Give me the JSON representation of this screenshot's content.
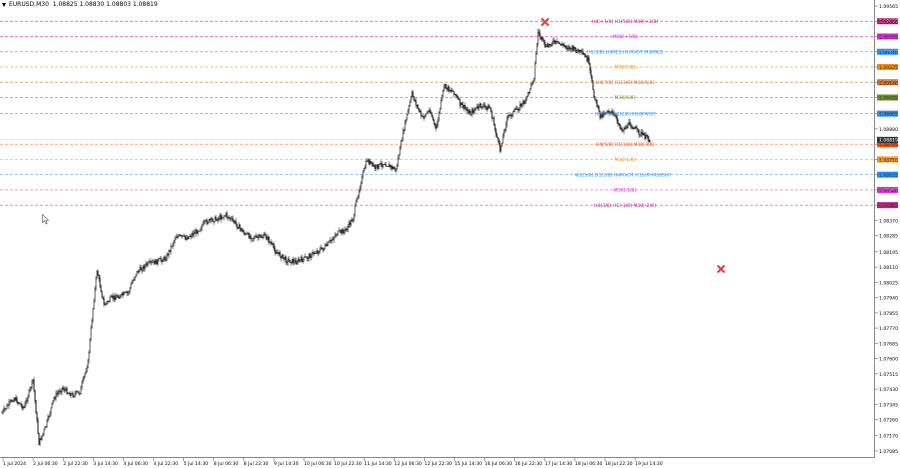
{
  "header": {
    "symbol": "EURUSD,M30",
    "prices": "1.08825 1.08830 1.08803 1.08819"
  },
  "price_axis": {
    "ticks": [
      "1.09565",
      "1.09480",
      "1.09395",
      "1.09310",
      "1.09225",
      "1.09140",
      "1.09055",
      "1.08965",
      "1.08880",
      "1.08795",
      "1.08710",
      "1.08625",
      "1.08540",
      "1.08455",
      "1.08370",
      "1.08285",
      "1.08195",
      "1.08110",
      "1.08025",
      "1.07940",
      "1.07855",
      "1.07770",
      "1.07685",
      "1.07600",
      "1.07515",
      "1.07430",
      "1.07345",
      "1.07260",
      "1.07170",
      "1.07085"
    ]
  },
  "time_axis": {
    "ticks": [
      "1 Jul 2024",
      "2 Jul 06:30",
      "2 Jul 22:30",
      "3 Jul 14:30",
      "4 Jul 06:30",
      "4 Jul 22:30",
      "5 Jul 14:30",
      "8 Jul 06:30",
      "8 Jul 22:30",
      "9 Jul 14:30",
      "10 Jul 06:30",
      "10 Jul 22:30",
      "11 Jul 14:30",
      "12 Jul 06:30",
      "12 Jul 22:30",
      "15 Jul 14:30",
      "16 Jul 06:30",
      "16 Jul 22:30",
      "17 Jul 14:30",
      "18 Jul 06:30",
      "18 Jul 22:30",
      "19 Jul 14:30"
    ]
  },
  "levels": [
    {
      "label": "H4[+1/8] H1[5/8] M30[+2/8]",
      "price": "1.09480",
      "color": "#c71585"
    },
    {
      "label": "M30[+1/8]",
      "price": "1.09395",
      "color": "#dd22dd"
    },
    {
      "label": "H1[3/8] H4RES H1PIVOT M30RES",
      "price": "1.09310",
      "color": "#1e90ff"
    },
    {
      "label": "M30[7/8]",
      "price": "1.09225",
      "color": "#ff8c00"
    },
    {
      "label": "H4[7/8] H1[3/8] M30[6/8]",
      "price": "1.09140",
      "color": "#d2691e"
    },
    {
      "label": "M30[5/8]",
      "price": "1.09055",
      "color": "#6b8e23"
    },
    {
      "label": "H4[6/8] H1[2/8] M30PIVOT",
      "price": "1.08965",
      "color": "#1e90ff"
    },
    {
      "label": "H4[5/8] H1[1/8] M30[3/8]",
      "price": "1.08795",
      "color": "#ff4500"
    },
    {
      "label": "M30[1/8]",
      "price": "1.08710",
      "color": "#ff8c00"
    },
    {
      "label": "W1[5/8] D1[2/8] H4PIVOT H1SUP M30SUP",
      "price": "1.08625",
      "color": "#1e90ff"
    },
    {
      "label": "M30[-1/8]",
      "price": "1.08540",
      "color": "#dd22dd"
    },
    {
      "label": "H4[3/8] H1[-1/8] M30[-2/8]",
      "price": "1.08455",
      "color": "#c71585"
    }
  ],
  "current_price": {
    "price": "1.08819",
    "color": "#333333"
  },
  "colors": {
    "candle": "#000000",
    "background": "#ffffff",
    "marker": "#e04040"
  },
  "icons": {
    "cursor": "cursor-arrow-icon",
    "marker": "x-marker-icon"
  }
}
